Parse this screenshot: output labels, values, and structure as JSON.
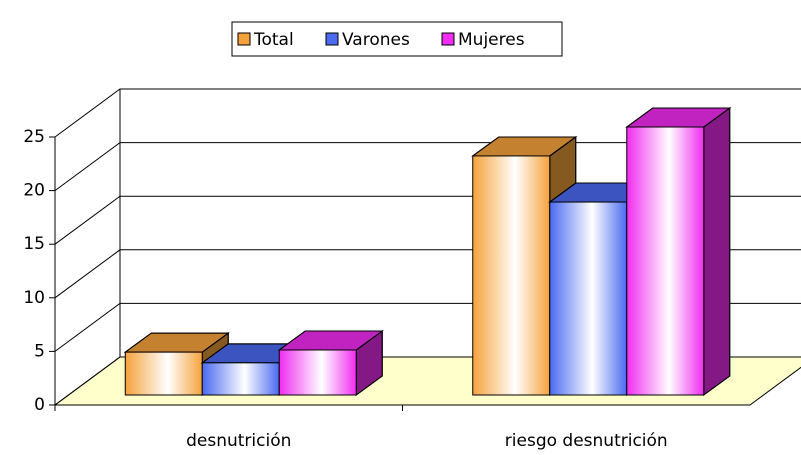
{
  "chart_data": {
    "type": "bar3d",
    "categories": [
      "desnutrición",
      "riesgo desnutrición"
    ],
    "series": [
      {
        "name": "Total",
        "color": "#f5a23c",
        "values": [
          4,
          22.3
        ]
      },
      {
        "name": "Varones",
        "color": "#4a6af0",
        "values": [
          3,
          18
        ]
      },
      {
        "name": "Mujeres",
        "color": "#f02cf0",
        "values": [
          4.2,
          25
        ]
      }
    ],
    "ylim": [
      0,
      25
    ],
    "yticks": [
      0,
      5,
      10,
      15,
      20,
      25
    ],
    "grid": true,
    "legend": "top"
  }
}
